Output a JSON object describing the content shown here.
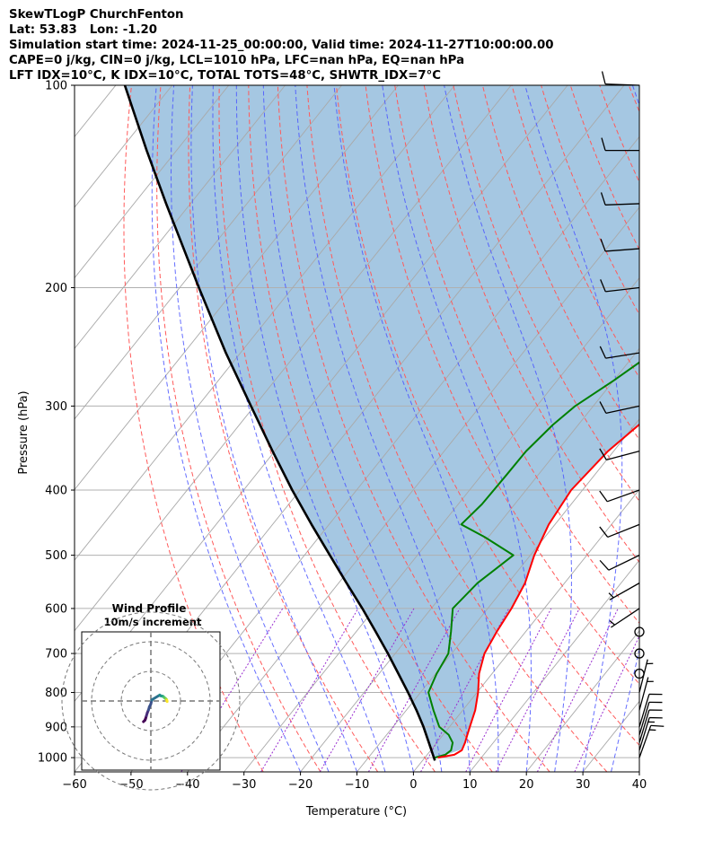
{
  "header": {
    "line1": "SkewTLogP ChurchFenton",
    "line2": "Lat: 53.83   Lon: -1.20",
    "line3": "Simulation start time: 2024-11-25_00:00:00, Valid time: 2024-11-27T10:00:00.00",
    "line4": "CAPE=0 j/kg, CIN=0 j/kg, LCL=1010 hPa, LFC=nan hPa, EQ=nan hPa",
    "line5": "LFT IDX=10°C, K IDX=10°C, TOTAL TOTS=48°C, SHWTR_IDX=7°C"
  },
  "chart_data": {
    "type": "line",
    "title": "SkewTLogP ChurchFenton",
    "xlabel": "Temperature (°C)",
    "ylabel": "Pressure (hPa)",
    "xlim": [
      -60,
      40
    ],
    "ylim": [
      1050,
      100
    ],
    "y_scale": "log",
    "x_ticks": [
      -60,
      -50,
      -40,
      -30,
      -20,
      -10,
      0,
      10,
      20,
      30,
      40
    ],
    "x_tick_labels": [
      "−60",
      "−50",
      "−40",
      "−30",
      "−20",
      "−10",
      "0",
      "10",
      "20",
      "30",
      "40"
    ],
    "y_ticks": [
      1000,
      900,
      800,
      700,
      600,
      500,
      400,
      300,
      200,
      100
    ],
    "y_tick_labels": [
      "1000",
      "900",
      "800",
      "700",
      "600",
      "500",
      "400",
      "300",
      "200",
      "100"
    ],
    "grid": true,
    "colors": {
      "temperature": "#ff0000",
      "dewpoint": "#008000",
      "parcel": "#000000",
      "shading": "#a0c4e0",
      "isotherm": "#a9a9a9",
      "dry_adiabat": "#ff5a5a",
      "moist_adiabat": "#4a55ff",
      "mixing_ratio": "#9a2fd0"
    },
    "series": [
      {
        "key": "temperature",
        "pressure": [
          1000,
          990,
          975,
          950,
          925,
          900,
          850,
          800,
          750,
          700,
          650,
          600,
          550,
          500,
          450,
          400,
          350,
          300,
          250,
          200,
          175,
          150,
          125,
          110,
          100
        ],
        "temperature": [
          2.3,
          4.8,
          5.5,
          5.0,
          4.3,
          3.6,
          2.2,
          0.2,
          -2.3,
          -4.2,
          -5.1,
          -5.8,
          -7.0,
          -9.3,
          -11.1,
          -12.0,
          -11.0,
          -8.0,
          -5.8,
          -5.0,
          -3.8,
          -0.8,
          1.8,
          4.0,
          5.8
        ]
      },
      {
        "key": "dewpoint",
        "pressure": [
          1000,
          990,
          975,
          950,
          925,
          900,
          850,
          800,
          750,
          700,
          650,
          600,
          550,
          500,
          470,
          450,
          420,
          380,
          350,
          320,
          300,
          275,
          250,
          225,
          200,
          180,
          160,
          140,
          125,
          110,
          100
        ],
        "temperature": [
          1.8,
          3.2,
          3.6,
          2.8,
          1.0,
          -1.8,
          -5.2,
          -8.6,
          -9.8,
          -10.6,
          -13.2,
          -16.2,
          -15.4,
          -13.0,
          -20.6,
          -26.6,
          -25.8,
          -25.6,
          -25.5,
          -24.5,
          -23.2,
          -20.0,
          -17.0,
          -16.5,
          -17.8,
          -19.1,
          -19.6,
          -18.2,
          -15.0,
          -11.0,
          -7.0
        ]
      },
      {
        "key": "parcel",
        "pressure": [
          1010,
          1000,
          950,
          900,
          850,
          800,
          750,
          700,
          650,
          600,
          550,
          500,
          450,
          400,
          350,
          300,
          250,
          200,
          150,
          125,
          100
        ],
        "temperature": [
          2.2,
          1.6,
          -1.4,
          -4.6,
          -8.2,
          -12.2,
          -16.6,
          -21.3,
          -26.5,
          -32.2,
          -38.6,
          -45.5,
          -53.1,
          -61.4,
          -70.4,
          -80.6,
          -92.6,
          -106.6,
          -124.3,
          -135.3,
          -148.4
        ]
      }
    ],
    "wind_barbs": [
      {
        "pressure": 1000,
        "u": -2.5,
        "v": -7
      },
      {
        "pressure": 975,
        "u": -2,
        "v": -6.5
      },
      {
        "pressure": 950,
        "u": -1.8,
        "v": -6
      },
      {
        "pressure": 925,
        "u": -1.5,
        "v": -5
      },
      {
        "pressure": 900,
        "u": -1.2,
        "v": -4
      },
      {
        "pressure": 850,
        "u": -0.8,
        "v": -3
      },
      {
        "pressure": 800,
        "u": -0.5,
        "v": -2
      },
      {
        "pressure": 750,
        "u": 0,
        "v": -1
      },
      {
        "pressure": 700,
        "u": 0.3,
        "v": 0.3
      },
      {
        "pressure": 650,
        "u": 0.5,
        "v": 0.5
      },
      {
        "pressure": 600,
        "u": 3,
        "v": 2
      },
      {
        "pressure": 550,
        "u": 3.2,
        "v": 1.8
      },
      {
        "pressure": 500,
        "u": 3.5,
        "v": 1.7
      },
      {
        "pressure": 450,
        "u": 4,
        "v": 1.6
      },
      {
        "pressure": 400,
        "u": 4.2,
        "v": 1.5
      },
      {
        "pressure": 350,
        "u": 4.5,
        "v": 1.2
      },
      {
        "pressure": 300,
        "u": 4.7,
        "v": 1.0
      },
      {
        "pressure": 250,
        "u": 5,
        "v": 0.8
      },
      {
        "pressure": 200,
        "u": 5.2,
        "v": 0.6
      },
      {
        "pressure": 175,
        "u": 5.3,
        "v": 0.4
      },
      {
        "pressure": 150,
        "u": 5.4,
        "v": 0.2
      },
      {
        "pressure": 125,
        "u": 5.4,
        "v": 0
      },
      {
        "pressure": 100,
        "u": 5.5,
        "v": -0.2
      }
    ],
    "hodograph": {
      "title": "Wind Profile",
      "subtitle": "10m/s increment",
      "ring_increment_ms": 10,
      "u": [
        -2.5,
        -2,
        -1.8,
        -1.5,
        -1.2,
        -0.8,
        -0.5,
        0,
        0.3,
        0.5,
        3,
        3.2,
        3.5,
        4,
        4.2,
        4.5,
        4.7,
        5,
        5.2,
        5.3,
        5.4,
        5.4,
        5.5
      ],
      "v": [
        -7,
        -6.5,
        -6,
        -5,
        -4,
        -3,
        -2,
        -1,
        0.3,
        0.5,
        2,
        1.8,
        1.7,
        1.6,
        1.5,
        1.2,
        1.0,
        0.8,
        0.6,
        0.4,
        0.2,
        0,
        -0.2
      ]
    }
  }
}
